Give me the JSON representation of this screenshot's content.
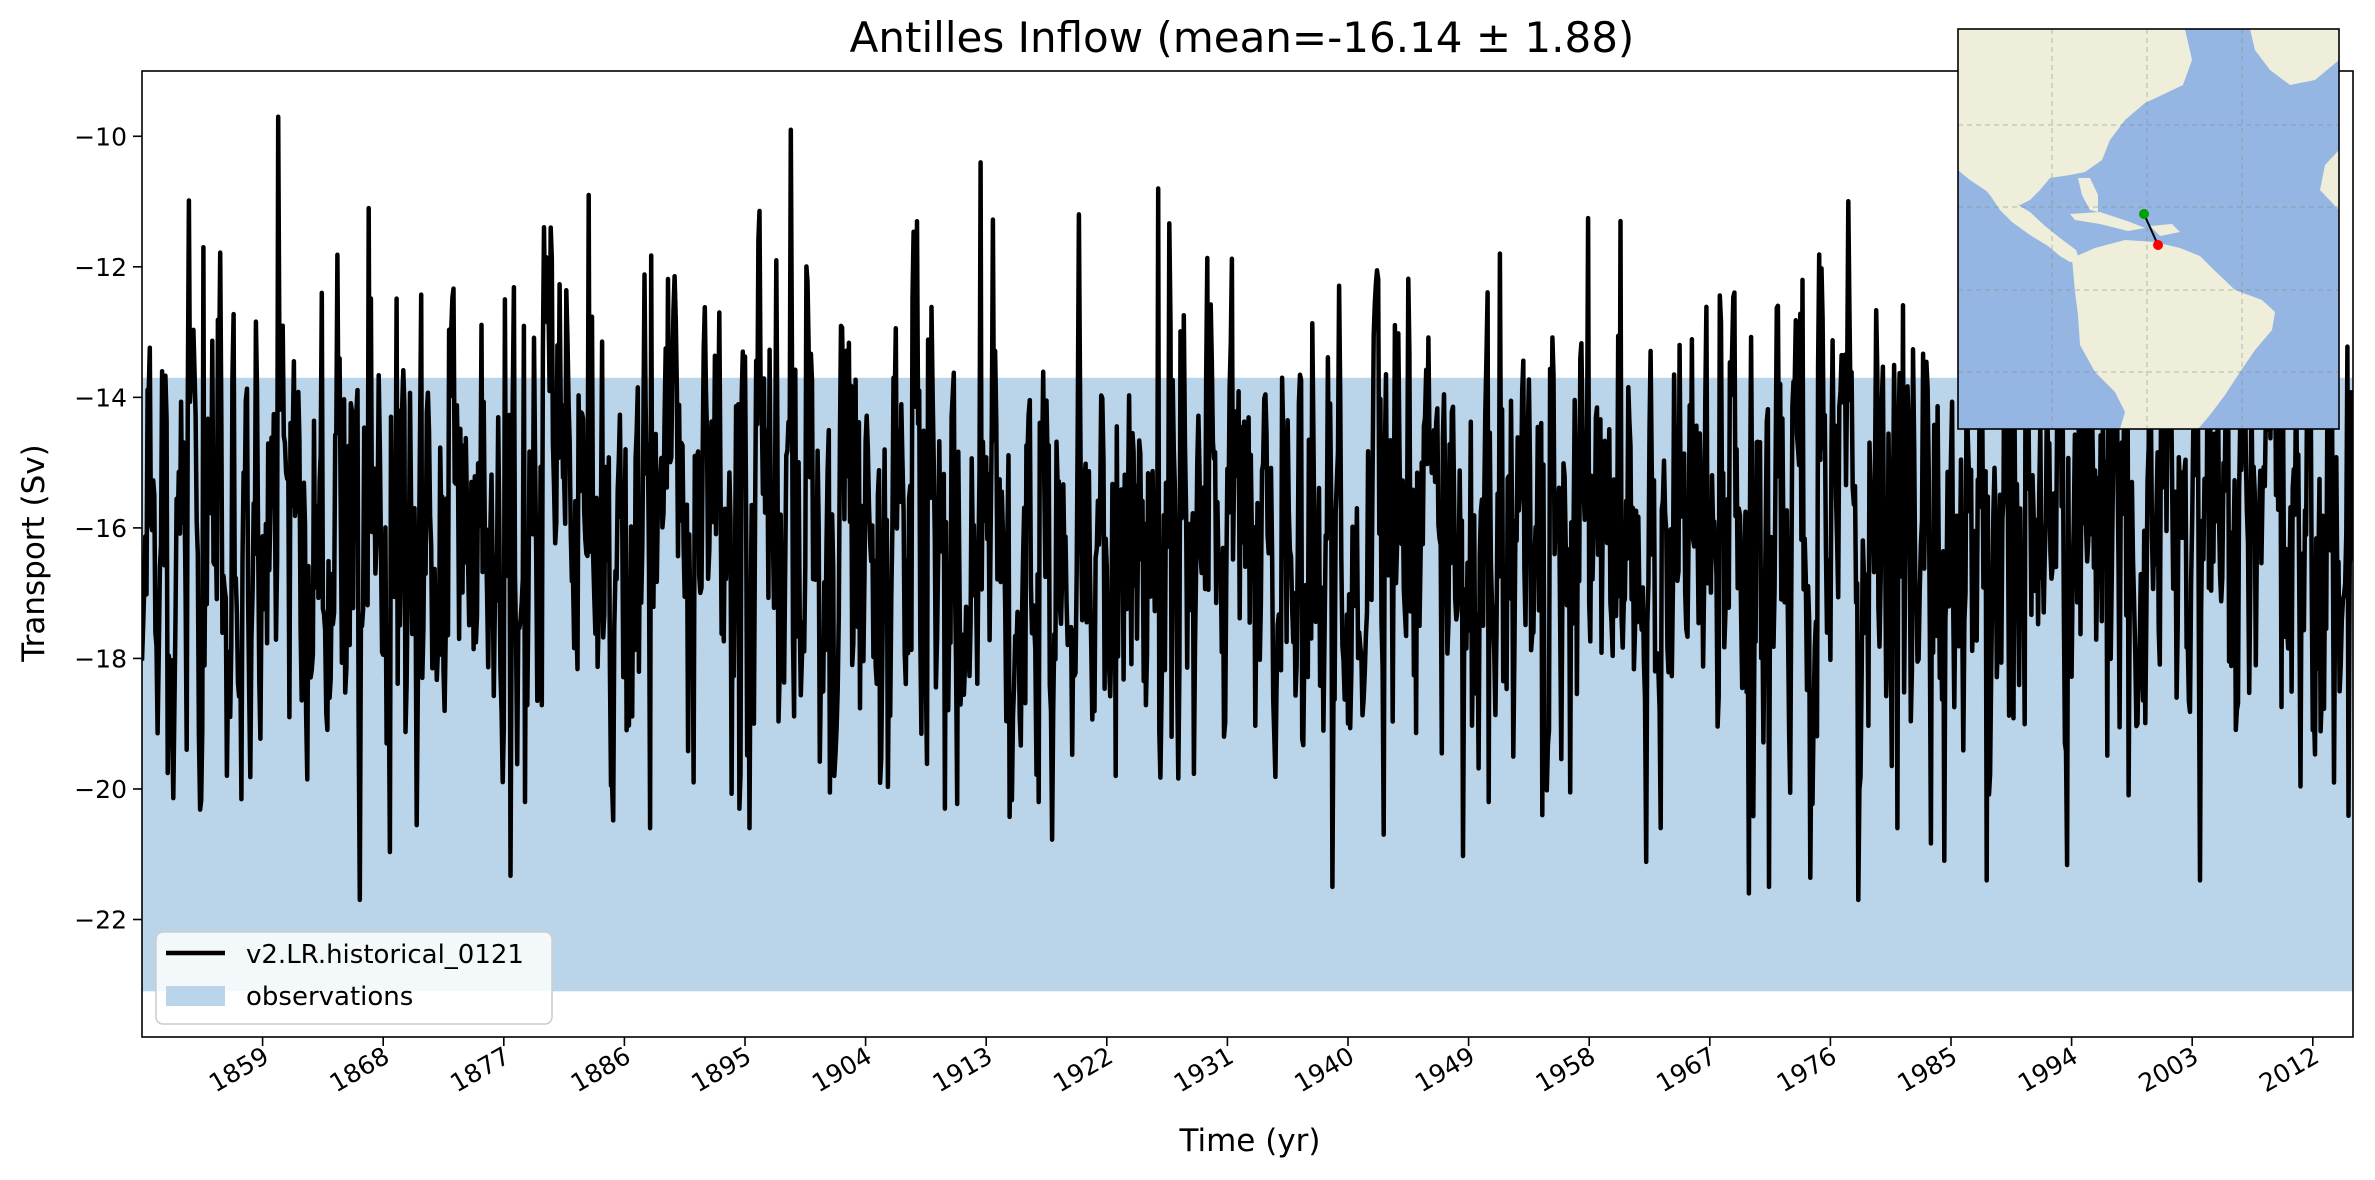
{
  "chart_data": {
    "type": "line",
    "title": "Antilles Inflow (mean=-16.14 ± 1.88)",
    "xlabel": "Time (yr)",
    "ylabel": "Transport (Sv)",
    "xlim": [
      1850,
      2015
    ],
    "ylim": [
      -23.8,
      -9.0
    ],
    "xticks": [
      1859,
      1868,
      1877,
      1886,
      1895,
      1904,
      1913,
      1922,
      1931,
      1940,
      1949,
      1958,
      1967,
      1976,
      1985,
      1994,
      2003,
      2012
    ],
    "yticks": [
      -22,
      -20,
      -18,
      -16,
      -14,
      -12,
      -10
    ],
    "xtick_labels": [
      "1859",
      "1868",
      "1877",
      "1886",
      "1895",
      "1904",
      "1913",
      "1922",
      "1931",
      "1940",
      "1949",
      "1958",
      "1967",
      "1976",
      "1985",
      "1994",
      "2003",
      "2012"
    ],
    "ytick_labels": [
      "−22",
      "−20",
      "−18",
      "−16",
      "−14",
      "−12",
      "−10"
    ],
    "observations_band": [
      -23.1,
      -13.7
    ],
    "series": [
      {
        "name": "v2.LR.historical_0121",
        "color": "#000000",
        "monthly": true,
        "mean": -16.14,
        "std": 1.88,
        "seed": 121,
        "peaks": [
          [
            1851.0,
            -17.6
          ],
          [
            1851.5,
            -13.6
          ],
          [
            1853.3,
            -19.4
          ],
          [
            1854.6,
            -11.7
          ],
          [
            1856.5,
            -17.9
          ],
          [
            1860.2,
            -9.7
          ],
          [
            1861.0,
            -18.9
          ],
          [
            1863.4,
            -12.4
          ],
          [
            1866.9,
            -11.1
          ],
          [
            1870.3,
            -15.7
          ],
          [
            1873.7,
            -17.7
          ],
          [
            1877.1,
            -12.5
          ],
          [
            1878.6,
            -20.2
          ],
          [
            1880.3,
            -12.6
          ],
          [
            1883.3,
            -10.9
          ],
          [
            1886.2,
            -19.1
          ],
          [
            1887.9,
            -20.6
          ],
          [
            1891.2,
            -19.9
          ],
          [
            1893.1,
            -12.7
          ],
          [
            1895.3,
            -20.6
          ],
          [
            1897.3,
            -11.9
          ],
          [
            1898.4,
            -9.9
          ],
          [
            1901.7,
            -19.8
          ],
          [
            1909.9,
            -20.3
          ],
          [
            1912.6,
            -10.4
          ],
          [
            1916.9,
            -20.2
          ],
          [
            1922.7,
            -19.8
          ],
          [
            1925.8,
            -10.8
          ],
          [
            1926.8,
            -19.2
          ],
          [
            1938.8,
            -21.5
          ],
          [
            1942.7,
            -20.7
          ],
          [
            1950.5,
            -20.2
          ],
          [
            1954.5,
            -20.4
          ],
          [
            1960.3,
            -11.3
          ],
          [
            1963.3,
            -20.6
          ],
          [
            1969.9,
            -21.6
          ],
          [
            1971.4,
            -21.5
          ],
          [
            1973.9,
            -12.2
          ],
          [
            1978.2,
            -20.0
          ],
          [
            1981.0,
            -20.6
          ],
          [
            1984.5,
            -21.1
          ],
          [
            1987.7,
            -21.4
          ],
          [
            1998.2,
            -12.3
          ],
          [
            2003.6,
            -21.4
          ]
        ]
      }
    ],
    "legend": {
      "position": "lower-left",
      "entries": [
        {
          "label": "v2.LR.historical_0121",
          "kind": "line",
          "color": "#000000"
        },
        {
          "label": "observations",
          "kind": "patch",
          "color": "#bad5e9"
        }
      ]
    },
    "inset_map": {
      "position": "top-right",
      "lon_range": [
        -100,
        -20
      ],
      "lat_range": [
        -30,
        50
      ],
      "ocean_color": "#95b6e2",
      "land_color": "#efeedb",
      "section_start": {
        "lon": -62,
        "lat": 15.5,
        "color": "#00a000"
      },
      "section_end": {
        "lon": -59,
        "lat": 9.5,
        "color": "#ff0000"
      }
    },
    "grid": false
  }
}
